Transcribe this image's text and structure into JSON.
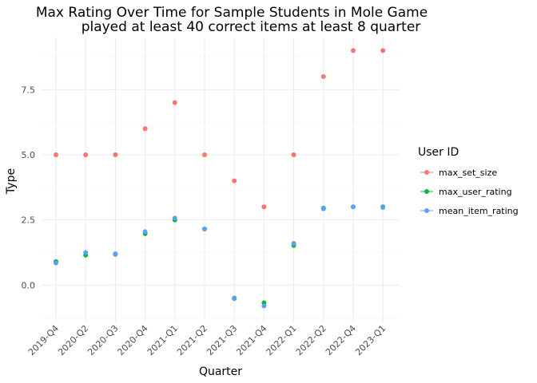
{
  "chart_data": {
    "type": "scatter",
    "title_line1": "Max Rating Over Time for Sample Students in Mole Game",
    "title_line2": "played at least 40 correct items at least 8 quarter",
    "xlabel": "Quarter",
    "ylabel": "Type",
    "categories": [
      "2019-Q4",
      "2020-Q2",
      "2020-Q3",
      "2020-Q4",
      "2021-Q1",
      "2021-Q2",
      "2021-Q3",
      "2021-Q4",
      "2022-Q1",
      "2022-Q2",
      "2022-Q4",
      "2023-Q1"
    ],
    "yticks": [
      "0.0",
      "2.5",
      "5.0",
      "7.5"
    ],
    "ylim": [
      -1.4,
      9.5
    ],
    "grid": true,
    "legend": {
      "title": "User ID",
      "position": "right"
    },
    "series": [
      {
        "name": "max_set_size",
        "color": "#F8766D",
        "values": [
          5,
          5,
          5,
          6,
          7,
          5,
          4,
          3,
          5,
          8,
          9,
          9
        ]
      },
      {
        "name": "max_user_rating",
        "color": "#00BA38",
        "values": [
          0.9,
          1.15,
          1.18,
          1.97,
          2.5,
          2.15,
          -0.5,
          -0.68,
          1.52,
          2.95,
          3.0,
          3.0
        ]
      },
      {
        "name": "mean_item_rating",
        "color": "#619CFF",
        "values": [
          0.85,
          1.25,
          1.2,
          2.05,
          2.57,
          2.15,
          -0.52,
          -0.8,
          1.6,
          2.93,
          3.0,
          2.98
        ]
      }
    ]
  }
}
